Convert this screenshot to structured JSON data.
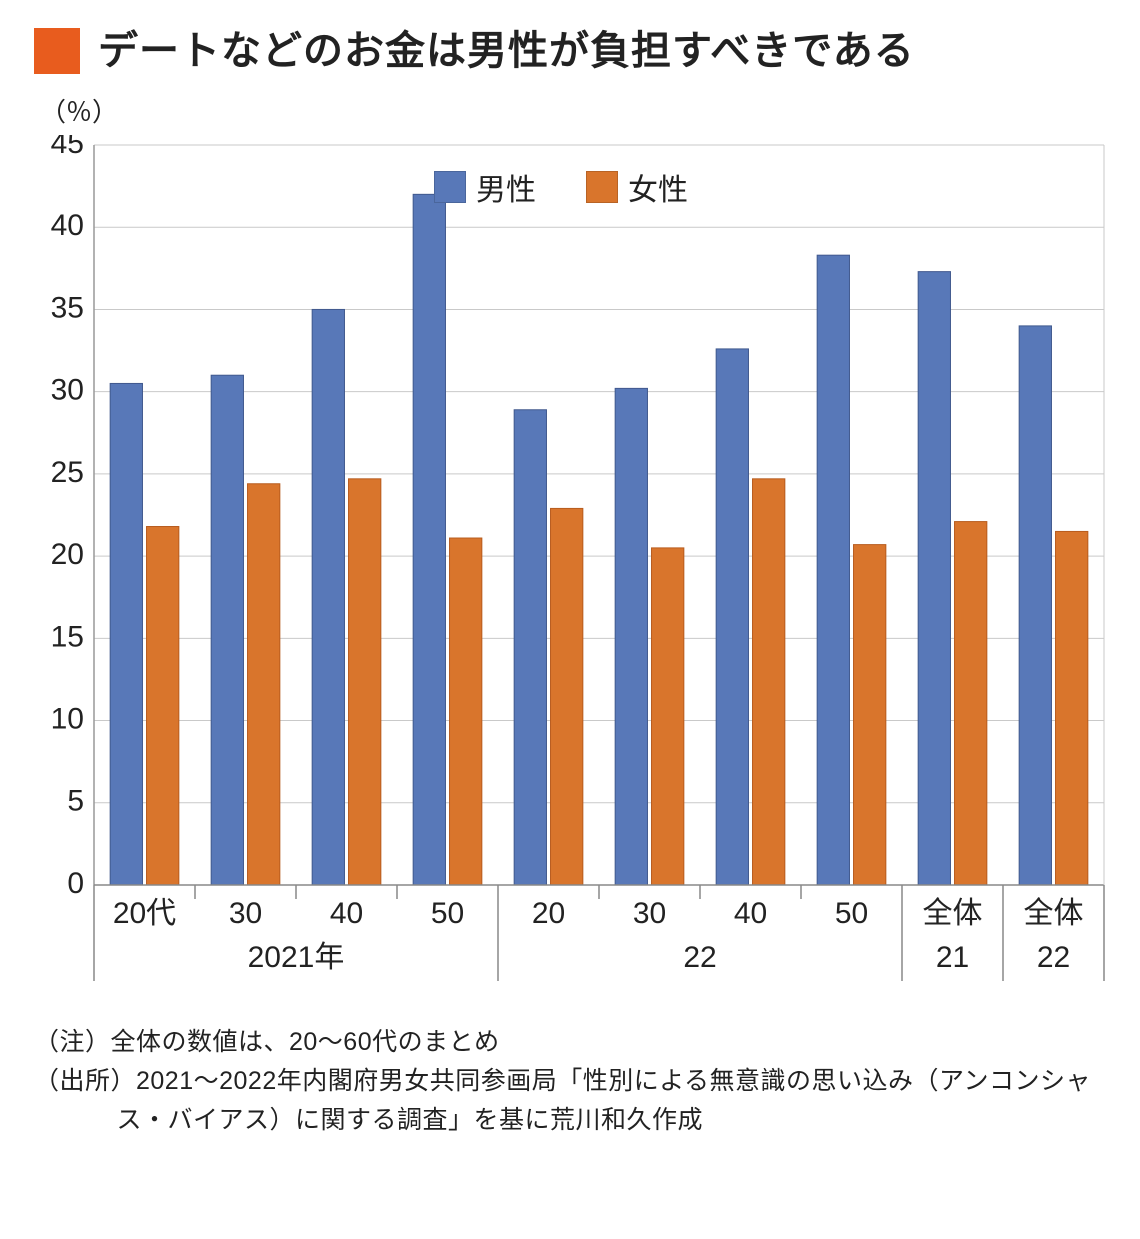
{
  "title": "デートなどのお金は男性が負担すべきである",
  "title_square_color": "#e85c1e",
  "unit_label": "（％）",
  "chart": {
    "type": "bar",
    "background_color": "#ffffff",
    "grid_color": "#c9c9c9",
    "border_color": "#888888",
    "ylim": [
      0,
      45
    ],
    "ytick_step": 5,
    "yticks": [
      0,
      5,
      10,
      15,
      20,
      25,
      30,
      35,
      40,
      45
    ],
    "bar_width_ratio": 0.32,
    "bar_gap_ratio": 0.04,
    "series": [
      {
        "key": "male",
        "label": "男性",
        "color": "#5878b8",
        "border": "#41598e"
      },
      {
        "key": "female",
        "label": "女性",
        "color": "#d9752c",
        "border": "#b85c1e"
      }
    ],
    "groups": [
      {
        "label": "2021年",
        "categories": [
          {
            "label": "20代",
            "male": 30.5,
            "female": 21.8
          },
          {
            "label": "30",
            "male": 31.0,
            "female": 24.4
          },
          {
            "label": "40",
            "male": 35.0,
            "female": 24.7
          },
          {
            "label": "50",
            "male": 42.0,
            "female": 21.1
          }
        ]
      },
      {
        "label": "22",
        "categories": [
          {
            "label": "20",
            "male": 28.9,
            "female": 22.9
          },
          {
            "label": "30",
            "male": 30.2,
            "female": 20.5
          },
          {
            "label": "40",
            "male": 32.6,
            "female": 24.7
          },
          {
            "label": "50",
            "male": 38.3,
            "female": 20.7
          }
        ]
      },
      {
        "label": "21",
        "categories": [
          {
            "label": "全体",
            "male": 37.3,
            "female": 22.1
          }
        ]
      },
      {
        "label": "22",
        "categories": [
          {
            "label": "全体",
            "male": 34.0,
            "female": 21.5
          }
        ]
      }
    ],
    "label_fontsize": 30,
    "legend_fontsize": 30,
    "title_fontsize": 40
  },
  "notes": {
    "line1": "（注）全体の数値は、20～60代のまとめ",
    "line2": "（出所）2021～2022年内閣府男女共同参画局「性別による無意識の思い込み（アンコンシャス・バイアス）に関する調査」を基に荒川和久作成"
  }
}
